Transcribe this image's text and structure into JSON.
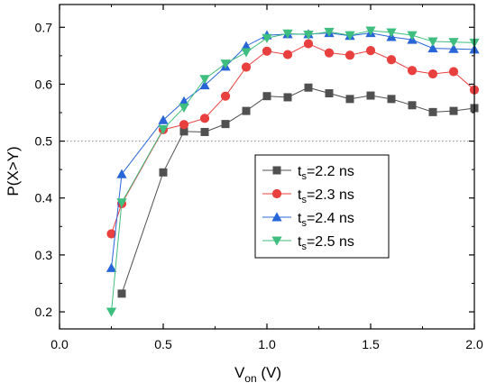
{
  "chart_data": {
    "type": "line",
    "xlabel": {
      "main": "V",
      "sub": "on",
      "unit": " (V)"
    },
    "ylabel": "P(X>Y)",
    "xlim": [
      0.0,
      2.0
    ],
    "ylim": [
      0.17,
      0.74
    ],
    "xticks": [
      "0.0",
      "0.5",
      "1.0",
      "1.5",
      "2.0"
    ],
    "yticks": [
      "0.2",
      "0.3",
      "0.4",
      "0.5",
      "0.6",
      "0.7"
    ],
    "reference_line": {
      "y": 0.5,
      "style": "dotted"
    },
    "legend_position": "center-right",
    "x": [
      0.25,
      0.3,
      0.5,
      0.6,
      0.7,
      0.8,
      0.9,
      1.0,
      1.1,
      1.2,
      1.3,
      1.4,
      1.5,
      1.6,
      1.7,
      1.8,
      1.9,
      2.0
    ],
    "series": [
      {
        "name": {
          "main": "t",
          "sub": "s",
          "rest": "=2.2 ns"
        },
        "marker": "square",
        "color": "#505050",
        "x": [
          0.3,
          0.5,
          0.6,
          0.7,
          0.8,
          0.9,
          1.0,
          1.1,
          1.2,
          1.3,
          1.4,
          1.5,
          1.6,
          1.7,
          1.8,
          1.9,
          2.0
        ],
        "values": [
          0.232,
          0.445,
          0.517,
          0.516,
          0.53,
          0.553,
          0.579,
          0.577,
          0.594,
          0.584,
          0.574,
          0.58,
          0.574,
          0.563,
          0.551,
          0.553,
          0.558
        ]
      },
      {
        "name": {
          "main": "t",
          "sub": "s",
          "rest": "=2.3 ns"
        },
        "marker": "circle",
        "color": "#e8403f",
        "x": [
          0.25,
          0.3,
          0.5,
          0.6,
          0.7,
          0.8,
          0.9,
          1.0,
          1.1,
          1.2,
          1.3,
          1.4,
          1.5,
          1.6,
          1.7,
          1.8,
          1.9,
          2.0
        ],
        "values": [
          0.337,
          0.39,
          0.52,
          0.529,
          0.54,
          0.579,
          0.63,
          0.658,
          0.652,
          0.671,
          0.655,
          0.651,
          0.659,
          0.643,
          0.624,
          0.618,
          0.622,
          0.59
        ]
      },
      {
        "name": {
          "main": "t",
          "sub": "s",
          "rest": "=2.4 ns"
        },
        "marker": "triangle-up",
        "color": "#2866d8",
        "x": [
          0.25,
          0.3,
          0.5,
          0.6,
          0.7,
          0.8,
          0.9,
          1.0,
          1.1,
          1.2,
          1.3,
          1.4,
          1.5,
          1.6,
          1.7,
          1.8,
          1.9,
          2.0
        ],
        "values": [
          0.277,
          0.442,
          0.537,
          0.57,
          0.598,
          0.631,
          0.667,
          0.686,
          0.688,
          0.688,
          0.69,
          0.685,
          0.69,
          0.683,
          0.678,
          0.663,
          0.662,
          0.661
        ]
      },
      {
        "name": {
          "main": "t",
          "sub": "s",
          "rest": "=2.5 ns"
        },
        "marker": "triangle-down",
        "color": "#3fbf7f",
        "x": [
          0.25,
          0.3,
          0.5,
          0.6,
          0.7,
          0.8,
          0.9,
          1.0,
          1.1,
          1.2,
          1.3,
          1.4,
          1.5,
          1.6,
          1.7,
          1.8,
          1.9,
          2.0
        ],
        "values": [
          0.2,
          0.392,
          0.521,
          0.559,
          0.609,
          0.636,
          0.656,
          0.681,
          0.689,
          0.687,
          0.692,
          0.686,
          0.694,
          0.691,
          0.686,
          0.675,
          0.674,
          0.673
        ]
      }
    ]
  }
}
